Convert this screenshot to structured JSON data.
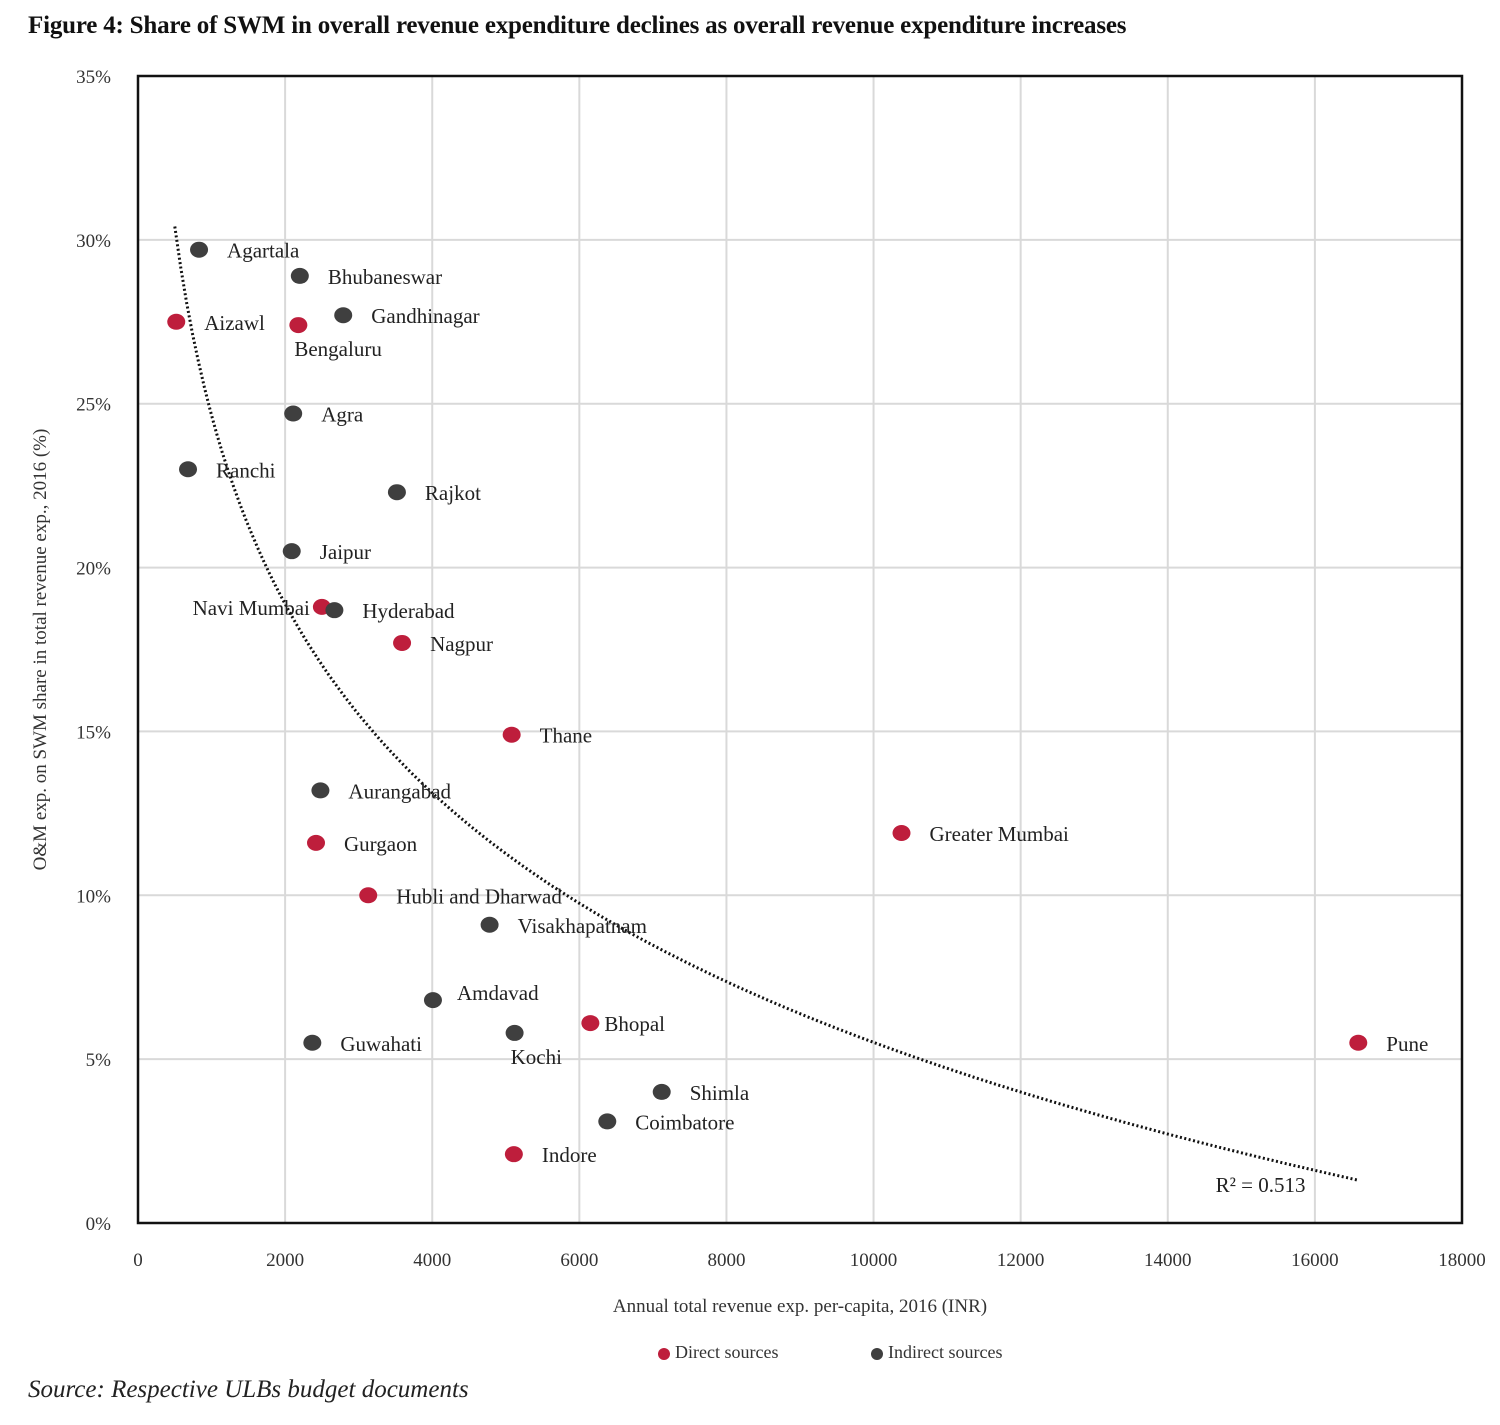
{
  "title": "Figure 4: Share of SWM in overall revenue expenditure declines as overall revenue expenditure increases",
  "source": "Source: Respective ULBs budget documents",
  "colors": {
    "direct": "#be1e3c",
    "indirect": "#3f3f3f",
    "grid": "#d9d9d9",
    "frame": "#111111"
  },
  "chart_data": {
    "type": "scatter",
    "title": "Figure 4: Share of SWM in overall revenue expenditure declines as overall revenue expenditure increases",
    "xlabel": "Annual total revenue exp. per-capita, 2016 (INR)",
    "ylabel": "O&M exp. on SWM share in total revenue exp., 2016 (%)",
    "xlim": [
      0,
      18000
    ],
    "ylim": [
      0,
      35
    ],
    "x_ticks": [
      "0",
      "2000",
      "4000",
      "6000",
      "8000",
      "10000",
      "12000",
      "14000",
      "16000",
      "18000"
    ],
    "x_tick_values": [
      0,
      2000,
      4000,
      6000,
      8000,
      10000,
      12000,
      14000,
      16000,
      18000
    ],
    "y_ticks": [
      "0%",
      "5%",
      "10%",
      "15%",
      "20%",
      "25%",
      "30%",
      "35%"
    ],
    "y_tick_values": [
      0,
      5,
      10,
      15,
      20,
      25,
      30,
      35
    ],
    "grid": true,
    "legend": {
      "placement": "bottom-center",
      "entries": [
        {
          "name": "Direct sources",
          "key": "direct"
        },
        {
          "name": "Indirect sources",
          "key": "indirect"
        }
      ]
    },
    "series": [
      {
        "name": "Direct sources",
        "key": "direct",
        "points": [
          {
            "label": "Aizawl",
            "x": 520,
            "y": 27.5,
            "label_pos": "right"
          },
          {
            "label": "Bengaluru",
            "x": 2180,
            "y": 27.4,
            "label_pos": "below"
          },
          {
            "label": "Navi Mumbai",
            "x": 2500,
            "y": 18.8,
            "label_pos": "left"
          },
          {
            "label": "Nagpur",
            "x": 3590,
            "y": 17.7,
            "label_pos": "right"
          },
          {
            "label": "Thane",
            "x": 5080,
            "y": 14.9,
            "label_pos": "right"
          },
          {
            "label": "Gurgaon",
            "x": 2420,
            "y": 11.6,
            "label_pos": "right"
          },
          {
            "label": "Hubli and Dharwad",
            "x": 3130,
            "y": 10.0,
            "label_pos": "right"
          },
          {
            "label": "Greater Mumbai",
            "x": 10380,
            "y": 11.9,
            "label_pos": "right"
          },
          {
            "label": "Bhopal",
            "x": 6150,
            "y": 6.1,
            "label_pos": "right-near"
          },
          {
            "label": "Pune",
            "x": 16590,
            "y": 5.5,
            "label_pos": "right"
          },
          {
            "label": "Indore",
            "x": 5110,
            "y": 2.1,
            "label_pos": "right"
          }
        ]
      },
      {
        "name": "Indirect sources",
        "key": "indirect",
        "points": [
          {
            "label": "Agartala",
            "x": 830,
            "y": 29.7,
            "label_pos": "right"
          },
          {
            "label": "Bhubaneswar",
            "x": 2200,
            "y": 28.9,
            "label_pos": "right"
          },
          {
            "label": "Gandhinagar",
            "x": 2790,
            "y": 27.7,
            "label_pos": "right"
          },
          {
            "label": "Agra",
            "x": 2110,
            "y": 24.7,
            "label_pos": "right"
          },
          {
            "label": "Ranchi",
            "x": 680,
            "y": 23.0,
            "label_pos": "right"
          },
          {
            "label": "Rajkot",
            "x": 3520,
            "y": 22.3,
            "label_pos": "right"
          },
          {
            "label": "Jaipur",
            "x": 2090,
            "y": 20.5,
            "label_pos": "right"
          },
          {
            "label": "Hyderabad",
            "x": 2670,
            "y": 18.7,
            "label_pos": "right"
          },
          {
            "label": "Aurangabad",
            "x": 2480,
            "y": 13.2,
            "label_pos": "right"
          },
          {
            "label": "Visakhapatnam",
            "x": 4780,
            "y": 9.1,
            "label_pos": "right"
          },
          {
            "label": "Amdavad",
            "x": 4010,
            "y": 6.8,
            "label_pos": "right-up"
          },
          {
            "label": "Kochi",
            "x": 5120,
            "y": 5.8,
            "label_pos": "below"
          },
          {
            "label": "Guwahati",
            "x": 2370,
            "y": 5.5,
            "label_pos": "right"
          },
          {
            "label": "Shimla",
            "x": 7120,
            "y": 4.0,
            "label_pos": "right"
          },
          {
            "label": "Coimbatore",
            "x": 6380,
            "y": 3.1,
            "label_pos": "right"
          }
        ]
      }
    ],
    "trendline": {
      "type": "logarithmic",
      "style": "dotted",
      "a": 82.05,
      "b": 8.31,
      "x_range": [
        500,
        16600
      ],
      "annotation": "R² = 0.513",
      "r_squared": 0.513
    }
  }
}
